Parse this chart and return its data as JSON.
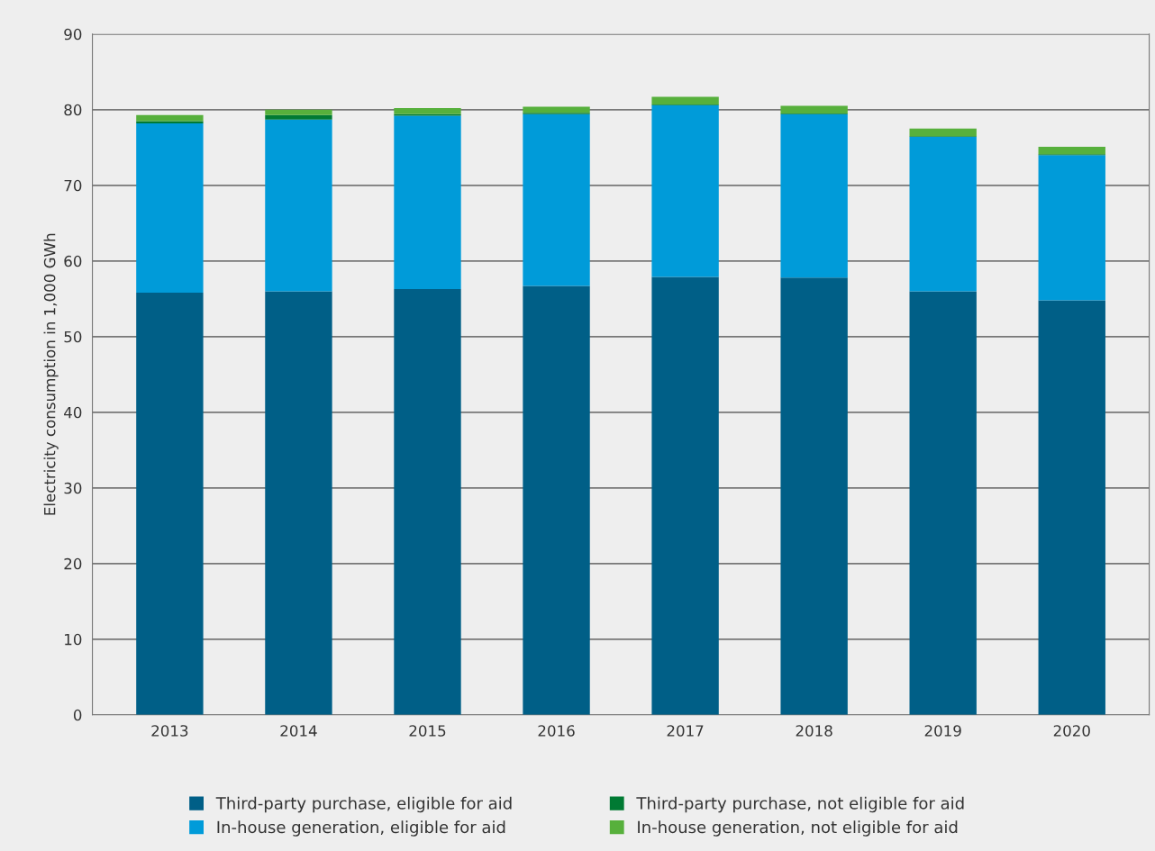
{
  "chart_data": {
    "type": "bar",
    "stacked": true,
    "ylabel": "Electricity consumption in 1,000 GWh",
    "categories": [
      "2013",
      "2014",
      "2015",
      "2016",
      "2017",
      "2018",
      "2019",
      "2020"
    ],
    "series": [
      {
        "name": "Third-party purchase, eligible for aid",
        "color": "#005f87",
        "values": [
          55.8,
          56.0,
          56.3,
          56.7,
          57.9,
          57.8,
          56.0,
          54.8
        ]
      },
      {
        "name": "In-house generation, eligible for aid",
        "color": "#009bd9",
        "values": [
          22.4,
          22.7,
          22.9,
          22.7,
          22.7,
          21.6,
          20.4,
          19.2
        ]
      },
      {
        "name": "Third-party purchase, not eligible for aid",
        "color": "#007a33",
        "values": [
          0.3,
          0.6,
          0.2,
          0.2,
          0.1,
          0.1,
          0.1,
          0.1
        ]
      },
      {
        "name": "In-house generation, not eligible for aid",
        "color": "#57b03c",
        "values": [
          0.8,
          0.7,
          0.8,
          0.8,
          1.0,
          1.0,
          1.0,
          1.0
        ]
      }
    ],
    "ylim": [
      0,
      90
    ],
    "yticks": [
      0,
      10,
      20,
      30,
      40,
      50,
      60,
      70,
      80,
      90
    ],
    "grid": "y",
    "legend": "bottom"
  }
}
